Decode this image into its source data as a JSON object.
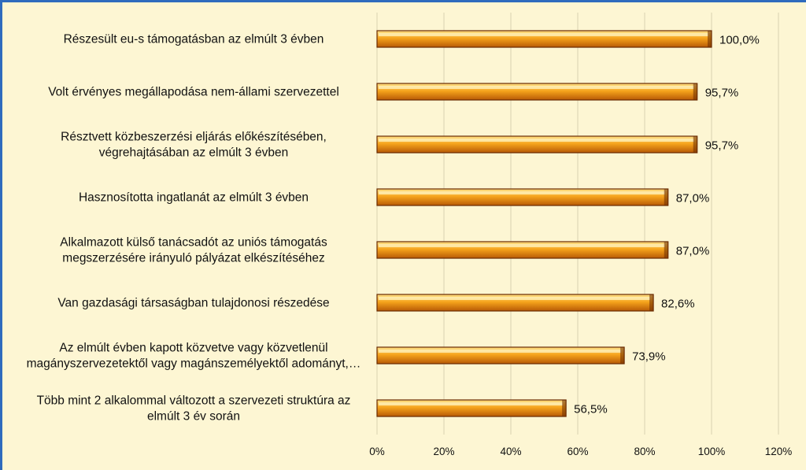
{
  "chart_data": {
    "type": "bar",
    "orientation": "horizontal",
    "categories": [
      [
        "Részesült eu-s támogatásban az elmúlt 3 évben"
      ],
      [
        "Volt érvényes megállapodása nem-állami szervezettel"
      ],
      [
        "Résztvett közbeszerzési eljárás előkészítésében,",
        "végrehajtásában az elmúlt 3 évben"
      ],
      [
        "Hasznosította ingatlanát az elmúlt 3 évben"
      ],
      [
        "Alkalmazott külső tanácsadót az uniós támogatás",
        "megszerzésére irányuló pályázat elkészítéséhez"
      ],
      [
        "Van gazdasági társaságban tulajdonosi részedése"
      ],
      [
        "Az elmúlt évben kapott közvetve vagy közvetlenül",
        "magányszervezetektől vagy magánszemélyektől adományt,…"
      ],
      [
        "Több mint 2 alkalommal változott a szervezeti struktúra az",
        "elmúlt 3 év során"
      ]
    ],
    "values": [
      100.0,
      95.7,
      95.7,
      87.0,
      87.0,
      82.6,
      73.9,
      56.5
    ],
    "value_labels": [
      "100,0%",
      "95,7%",
      "95,7%",
      "87,0%",
      "87,0%",
      "82,6%",
      "73,9%",
      "56,5%"
    ],
    "xlim": [
      0,
      120
    ],
    "xticks": [
      0,
      20,
      40,
      60,
      80,
      100,
      120
    ],
    "xtick_labels": [
      "0%",
      "20%",
      "40%",
      "60%",
      "80%",
      "100%",
      "120%"
    ],
    "grid": "vertical",
    "legend": "none",
    "colors": {
      "bar_light": "#ffe28a",
      "bar_mid": "#f6a41c",
      "bar_dark": "#b85a06",
      "bar_outline": "#6a2a00",
      "plot_background": "#fdf6d3",
      "frame_border": "#2f6bbd",
      "gridline": "#d9d3b0"
    }
  }
}
